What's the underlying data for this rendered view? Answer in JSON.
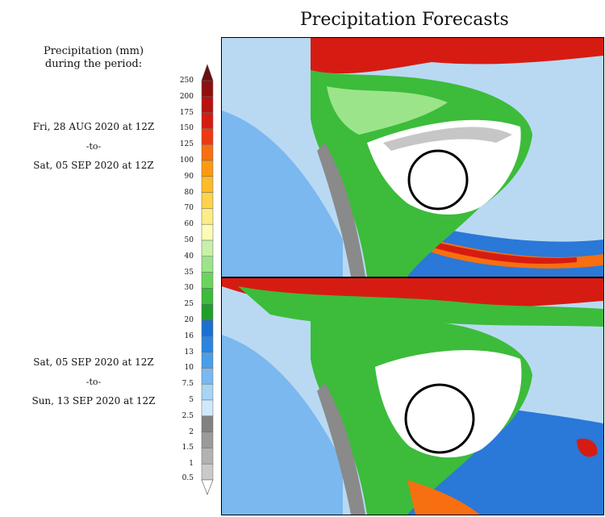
{
  "title": "Precipitation Forecasts",
  "legend": {
    "heading_line1": "Precipitation (mm)",
    "heading_line2": "during the period:",
    "ticks": [
      "250",
      "200",
      "175",
      "150",
      "125",
      "100",
      "90",
      "80",
      "70",
      "60",
      "50",
      "40",
      "35",
      "30",
      "25",
      "20",
      "16",
      "13",
      "10",
      "7.5",
      "5",
      "2.5",
      "2",
      "1.5",
      "1",
      "0.5"
    ],
    "colors": [
      "#6b0f0f",
      "#8f1010",
      "#b81212",
      "#d61c12",
      "#ee3a10",
      "#f76f10",
      "#fb9a12",
      "#fdbb28",
      "#fdd44a",
      "#fdec88",
      "#fcfcb8",
      "#c8f0a8",
      "#9ce48a",
      "#6cd45e",
      "#3cbc3a",
      "#1f9e2c",
      "#1b6fd0",
      "#2a85e0",
      "#4a9ee8",
      "#7ab8ef",
      "#a8d4f6",
      "#cfe8fb",
      "#828282",
      "#9a9a9a",
      "#b2b2b2",
      "#cacaca"
    ]
  },
  "periods": [
    {
      "start": "Fri, 28 AUG 2020 at 12Z",
      "sep": "-to-",
      "end": "Sat, 05 SEP 2020 at 12Z"
    },
    {
      "start": "Sat, 05 SEP 2020 at 12Z",
      "sep": "-to-",
      "end": "Sun, 13 SEP 2020 at 12Z"
    }
  ],
  "map_colors": {
    "ocean_light": "#b9d9f3",
    "ocean_mid": "#7ab8ef",
    "ocean_deep": "#2a78d8",
    "dry_land": "#ffffff",
    "grey_light": "#c6c6c6",
    "grey_dark": "#8a8a8a",
    "green": "#3cbc3a",
    "green_light": "#9ce48a",
    "red": "#d61c12",
    "orange": "#f76f10",
    "yellow": "#fdec88",
    "circle": "#000000"
  }
}
